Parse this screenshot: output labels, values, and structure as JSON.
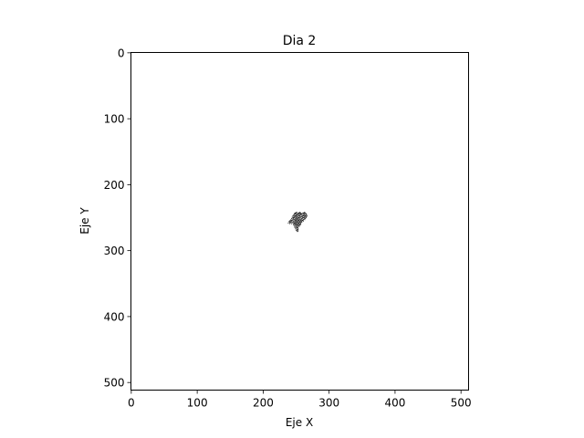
{
  "chart_data": {
    "type": "heatmap",
    "title": "Dia 2",
    "xlabel": "Eje X",
    "ylabel": "Eje Y",
    "xlim": [
      0,
      511
    ],
    "ylim": [
      511,
      0
    ],
    "y_inverted": true,
    "xticks": [
      0,
      100,
      200,
      300,
      400,
      500
    ],
    "yticks": [
      0,
      100,
      200,
      300,
      400,
      500
    ],
    "grid": false,
    "colors": {
      "background": "#ffffff",
      "cells": "#000000"
    },
    "occupied_cells": [
      [
        250,
        242
      ],
      [
        251,
        242
      ],
      [
        255,
        242
      ],
      [
        256,
        242
      ],
      [
        262,
        242
      ],
      [
        263,
        242
      ],
      [
        248,
        243
      ],
      [
        249,
        243
      ],
      [
        250,
        243
      ],
      [
        253,
        243
      ],
      [
        254,
        243
      ],
      [
        255,
        243
      ],
      [
        257,
        243
      ],
      [
        260,
        243
      ],
      [
        261,
        243
      ],
      [
        262,
        243
      ],
      [
        264,
        243
      ],
      [
        247,
        244
      ],
      [
        248,
        244
      ],
      [
        252,
        244
      ],
      [
        253,
        244
      ],
      [
        256,
        244
      ],
      [
        257,
        244
      ],
      [
        258,
        244
      ],
      [
        259,
        244
      ],
      [
        262,
        244
      ],
      [
        265,
        244
      ],
      [
        249,
        245
      ],
      [
        250,
        245
      ],
      [
        251,
        245
      ],
      [
        254,
        245
      ],
      [
        255,
        245
      ],
      [
        258,
        245
      ],
      [
        261,
        245
      ],
      [
        263,
        245
      ],
      [
        264,
        245
      ],
      [
        265,
        245
      ],
      [
        246,
        246
      ],
      [
        247,
        246
      ],
      [
        250,
        246
      ],
      [
        252,
        246
      ],
      [
        253,
        246
      ],
      [
        256,
        246
      ],
      [
        257,
        246
      ],
      [
        260,
        246
      ],
      [
        262,
        246
      ],
      [
        266,
        246
      ],
      [
        245,
        247
      ],
      [
        248,
        247
      ],
      [
        249,
        247
      ],
      [
        251,
        247
      ],
      [
        254,
        247
      ],
      [
        255,
        247
      ],
      [
        259,
        247
      ],
      [
        261,
        247
      ],
      [
        263,
        247
      ],
      [
        264,
        247
      ],
      [
        266,
        247
      ],
      [
        246,
        248
      ],
      [
        247,
        248
      ],
      [
        250,
        248
      ],
      [
        253,
        248
      ],
      [
        256,
        248
      ],
      [
        258,
        248
      ],
      [
        260,
        248
      ],
      [
        262,
        248
      ],
      [
        265,
        248
      ],
      [
        266,
        248
      ],
      [
        244,
        249
      ],
      [
        248,
        249
      ],
      [
        249,
        249
      ],
      [
        251,
        249
      ],
      [
        252,
        249
      ],
      [
        255,
        249
      ],
      [
        257,
        249
      ],
      [
        259,
        249
      ],
      [
        263,
        249
      ],
      [
        264,
        249
      ],
      [
        245,
        250
      ],
      [
        246,
        250
      ],
      [
        247,
        250
      ],
      [
        250,
        250
      ],
      [
        253,
        250
      ],
      [
        254,
        250
      ],
      [
        256,
        250
      ],
      [
        260,
        250
      ],
      [
        261,
        250
      ],
      [
        262,
        250
      ],
      [
        265,
        250
      ],
      [
        243,
        251
      ],
      [
        246,
        251
      ],
      [
        249,
        251
      ],
      [
        251,
        251
      ],
      [
        252,
        251
      ],
      [
        255,
        251
      ],
      [
        258,
        251
      ],
      [
        259,
        251
      ],
      [
        263,
        251
      ],
      [
        264,
        251
      ],
      [
        244,
        252
      ],
      [
        245,
        252
      ],
      [
        248,
        252
      ],
      [
        250,
        252
      ],
      [
        253,
        252
      ],
      [
        254,
        252
      ],
      [
        257,
        252
      ],
      [
        260,
        252
      ],
      [
        262,
        252
      ],
      [
        242,
        253
      ],
      [
        246,
        253
      ],
      [
        247,
        253
      ],
      [
        249,
        253
      ],
      [
        251,
        253
      ],
      [
        252,
        253
      ],
      [
        255,
        253
      ],
      [
        256,
        253
      ],
      [
        258,
        253
      ],
      [
        261,
        253
      ],
      [
        263,
        253
      ],
      [
        241,
        254
      ],
      [
        243,
        254
      ],
      [
        244,
        254
      ],
      [
        248,
        254
      ],
      [
        250,
        254
      ],
      [
        253,
        254
      ],
      [
        254,
        254
      ],
      [
        257,
        254
      ],
      [
        259,
        254
      ],
      [
        260,
        254
      ],
      [
        240,
        255
      ],
      [
        242,
        255
      ],
      [
        245,
        255
      ],
      [
        246,
        255
      ],
      [
        249,
        255
      ],
      [
        251,
        255
      ],
      [
        252,
        255
      ],
      [
        255,
        255
      ],
      [
        256,
        255
      ],
      [
        258,
        255
      ],
      [
        261,
        255
      ],
      [
        239,
        256
      ],
      [
        241,
        256
      ],
      [
        243,
        256
      ],
      [
        247,
        256
      ],
      [
        248,
        256
      ],
      [
        250,
        256
      ],
      [
        253,
        256
      ],
      [
        254,
        256
      ],
      [
        257,
        256
      ],
      [
        259,
        256
      ],
      [
        240,
        257
      ],
      [
        242,
        257
      ],
      [
        244,
        257
      ],
      [
        246,
        257
      ],
      [
        249,
        257
      ],
      [
        251,
        257
      ],
      [
        252,
        257
      ],
      [
        255,
        257
      ],
      [
        256,
        257
      ],
      [
        258,
        257
      ],
      [
        238,
        258
      ],
      [
        241,
        258
      ],
      [
        245,
        258
      ],
      [
        247,
        258
      ],
      [
        248,
        258
      ],
      [
        250,
        258
      ],
      [
        253,
        258
      ],
      [
        254,
        258
      ],
      [
        257,
        258
      ],
      [
        240,
        259
      ],
      [
        243,
        259
      ],
      [
        246,
        259
      ],
      [
        249,
        259
      ],
      [
        251,
        259
      ],
      [
        252,
        259
      ],
      [
        255,
        259
      ],
      [
        256,
        259
      ],
      [
        247,
        260
      ],
      [
        248,
        260
      ],
      [
        250,
        260
      ],
      [
        253,
        260
      ],
      [
        254,
        260
      ],
      [
        257,
        260
      ],
      [
        246,
        261
      ],
      [
        249,
        261
      ],
      [
        251,
        261
      ],
      [
        252,
        261
      ],
      [
        255,
        261
      ],
      [
        256,
        261
      ],
      [
        248,
        262
      ],
      [
        250,
        262
      ],
      [
        253,
        262
      ],
      [
        254,
        262
      ],
      [
        247,
        263
      ],
      [
        251,
        263
      ],
      [
        252,
        263
      ],
      [
        255,
        263
      ],
      [
        249,
        264
      ],
      [
        250,
        264
      ],
      [
        253,
        264
      ],
      [
        248,
        265
      ],
      [
        251,
        265
      ],
      [
        252,
        265
      ],
      [
        250,
        266
      ],
      [
        253,
        266
      ],
      [
        249,
        267
      ],
      [
        252,
        267
      ],
      [
        251,
        268
      ],
      [
        253,
        268
      ],
      [
        250,
        269
      ],
      [
        252,
        269
      ],
      [
        251,
        270
      ],
      [
        253,
        270
      ],
      [
        252,
        271
      ]
    ]
  }
}
